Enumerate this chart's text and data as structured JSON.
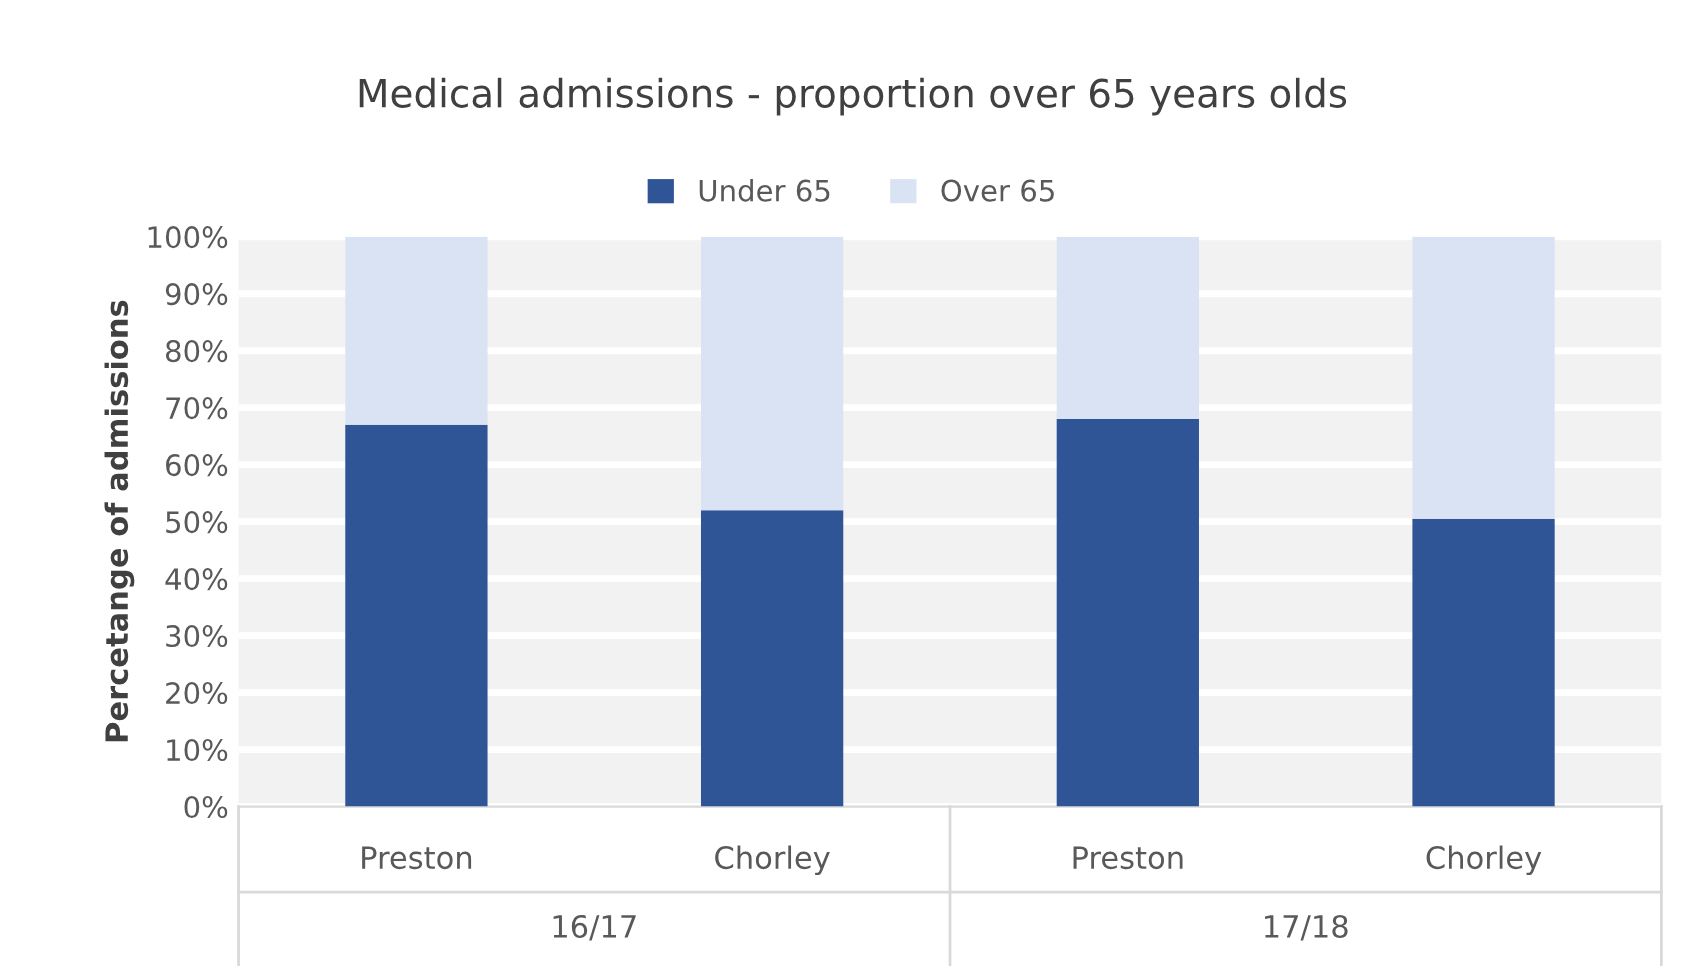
{
  "chart_data": {
    "type": "bar",
    "title": "Medical admissions - proportion over 65 years olds",
    "ylabel": "Percetange of admissions",
    "categories": [
      "Preston",
      "Chorley",
      "Preston",
      "Chorley"
    ],
    "series": [
      {
        "name": "Under 65",
        "color": "#2f5597",
        "values": [
          67,
          52,
          68,
          50.5
        ]
      },
      {
        "name": "Over 65",
        "color": "#dae3f3",
        "values": [
          33,
          48,
          32,
          49.5
        ]
      }
    ],
    "stacked": true,
    "ylim": [
      0,
      100
    ],
    "yticks": [
      {
        "value": 0,
        "label": "0%"
      },
      {
        "value": 10,
        "label": "10%"
      },
      {
        "value": 20,
        "label": "20%"
      },
      {
        "value": 30,
        "label": "30%"
      },
      {
        "value": 40,
        "label": "40%"
      },
      {
        "value": 50,
        "label": "50%"
      },
      {
        "value": 60,
        "label": "60%"
      },
      {
        "value": 70,
        "label": "70%"
      },
      {
        "value": 80,
        "label": "80%"
      },
      {
        "value": 90,
        "label": "90%"
      },
      {
        "value": 100,
        "label": "100%"
      }
    ],
    "annotations": [
      "16/17",
      "17/18"
    ],
    "grid": "y",
    "legend": "top"
  }
}
